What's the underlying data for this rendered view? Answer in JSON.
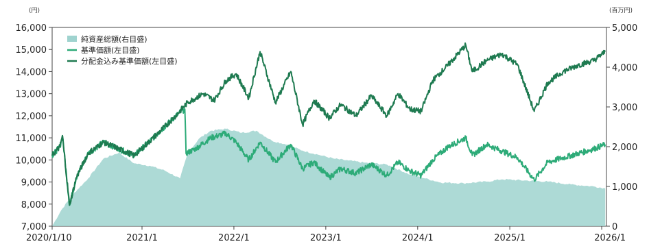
{
  "chart_data": {
    "type": "line",
    "left_axis": {
      "unit": "(円)",
      "range": [
        7000,
        16000
      ],
      "ticks": [
        "7,000",
        "8,000",
        "9,000",
        "10,000",
        "11,000",
        "12,000",
        "13,000",
        "14,000",
        "15,000",
        "16,000"
      ]
    },
    "right_axis": {
      "unit": "(百万円)",
      "range": [
        0,
        5000
      ],
      "ticks": [
        "0",
        "1,000",
        "2,000",
        "3,000",
        "4,000",
        "5,000"
      ]
    },
    "x_axis": {
      "ticks": [
        "2020/1/10",
        "2021/1",
        "2022/1",
        "2023/1",
        "2024/1",
        "2025/1",
        "2026/1"
      ]
    },
    "legend_position": "top-left",
    "series": [
      {
        "name": "純資産総額(右目盛)",
        "kind": "area",
        "axis": "right",
        "color": "#9fd3cf",
        "points": [
          [
            "2020-01-10",
            0
          ],
          [
            "2020-02-15",
            400
          ],
          [
            "2020-04-01",
            800
          ],
          [
            "2020-06-01",
            1200
          ],
          [
            "2020-08-01",
            1700
          ],
          [
            "2020-10-01",
            1850
          ],
          [
            "2020-12-01",
            1580
          ],
          [
            "2021-02-01",
            1520
          ],
          [
            "2021-04-01",
            1400
          ],
          [
            "2021-06-01",
            1200
          ],
          [
            "2021-07-01",
            1820
          ],
          [
            "2021-08-15",
            2200
          ],
          [
            "2021-10-01",
            2400
          ],
          [
            "2021-12-01",
            2450
          ],
          [
            "2022-02-01",
            2350
          ],
          [
            "2022-04-01",
            2400
          ],
          [
            "2022-06-01",
            2150
          ],
          [
            "2022-08-01",
            2050
          ],
          [
            "2022-10-01",
            1900
          ],
          [
            "2022-12-01",
            1800
          ],
          [
            "2023-02-01",
            1700
          ],
          [
            "2023-04-01",
            1650
          ],
          [
            "2023-06-01",
            1600
          ],
          [
            "2023-09-01",
            1550
          ],
          [
            "2023-12-01",
            1300
          ],
          [
            "2024-02-01",
            1200
          ],
          [
            "2024-04-01",
            1100
          ],
          [
            "2024-07-01",
            1080
          ],
          [
            "2024-10-01",
            1120
          ],
          [
            "2024-12-01",
            1180
          ],
          [
            "2025-03-01",
            1150
          ],
          [
            "2025-06-01",
            1120
          ],
          [
            "2025-09-01",
            1050
          ],
          [
            "2025-12-01",
            1000
          ],
          [
            "2026-01-15",
            950
          ]
        ]
      },
      {
        "name": "基準価額(左目盛)",
        "kind": "line",
        "axis": "left",
        "color": "#2dab78",
        "points": [
          [
            "2020-01-10",
            10200
          ],
          [
            "2020-02-10",
            10600
          ],
          [
            "2020-02-20",
            11100
          ],
          [
            "2020-03-19",
            7950
          ],
          [
            "2020-04-15",
            9200
          ],
          [
            "2020-06-01",
            10300
          ],
          [
            "2020-08-01",
            10800
          ],
          [
            "2020-10-01",
            10500
          ],
          [
            "2020-12-01",
            10200
          ],
          [
            "2021-02-15",
            11000
          ],
          [
            "2021-04-01",
            11500
          ],
          [
            "2021-05-15",
            12000
          ],
          [
            "2021-06-20",
            12300
          ],
          [
            "2021-06-25",
            10300
          ],
          [
            "2021-08-01",
            10500
          ],
          [
            "2021-10-01",
            11000
          ],
          [
            "2021-12-01",
            11200
          ],
          [
            "2022-01-10",
            10800
          ],
          [
            "2022-03-01",
            10000
          ],
          [
            "2022-04-15",
            10800
          ],
          [
            "2022-06-15",
            9900
          ],
          [
            "2022-08-15",
            10700
          ],
          [
            "2022-10-01",
            9600
          ],
          [
            "2022-11-15",
            9900
          ],
          [
            "2023-01-15",
            9200
          ],
          [
            "2023-03-01",
            9600
          ],
          [
            "2023-05-01",
            9400
          ],
          [
            "2023-07-01",
            9800
          ],
          [
            "2023-09-01",
            9300
          ],
          [
            "2023-10-15",
            9900
          ],
          [
            "2023-12-01",
            9500
          ],
          [
            "2024-01-15",
            9300
          ],
          [
            "2024-03-01",
            10000
          ],
          [
            "2024-05-01",
            10600
          ],
          [
            "2024-07-10",
            11000
          ],
          [
            "2024-08-05",
            10200
          ],
          [
            "2024-10-01",
            10700
          ],
          [
            "2024-12-01",
            10400
          ],
          [
            "2025-02-01",
            10100
          ],
          [
            "2025-04-08",
            9100
          ],
          [
            "2025-06-01",
            9900
          ],
          [
            "2025-08-01",
            10100
          ],
          [
            "2025-10-01",
            10300
          ],
          [
            "2025-12-01",
            10500
          ],
          [
            "2026-01-15",
            10700
          ]
        ]
      },
      {
        "name": "分配金込み基準価額(左目盛)",
        "kind": "line",
        "axis": "left",
        "color": "#1e7a50",
        "points": [
          [
            "2020-01-10",
            10200
          ],
          [
            "2020-02-10",
            10600
          ],
          [
            "2020-02-20",
            11100
          ],
          [
            "2020-03-19",
            7950
          ],
          [
            "2020-04-15",
            9200
          ],
          [
            "2020-06-01",
            10300
          ],
          [
            "2020-08-01",
            10800
          ],
          [
            "2020-10-01",
            10500
          ],
          [
            "2020-12-01",
            10200
          ],
          [
            "2021-02-15",
            11000
          ],
          [
            "2021-04-01",
            11500
          ],
          [
            "2021-05-15",
            12000
          ],
          [
            "2021-07-01",
            12600
          ],
          [
            "2021-09-01",
            13000
          ],
          [
            "2021-10-15",
            12700
          ],
          [
            "2021-12-01",
            13600
          ],
          [
            "2022-01-10",
            13900
          ],
          [
            "2022-03-01",
            12800
          ],
          [
            "2022-04-15",
            14900
          ],
          [
            "2022-06-15",
            12600
          ],
          [
            "2022-08-15",
            14000
          ],
          [
            "2022-10-01",
            11600
          ],
          [
            "2022-11-15",
            12700
          ],
          [
            "2023-01-15",
            11900
          ],
          [
            "2023-03-01",
            12500
          ],
          [
            "2023-05-01",
            12000
          ],
          [
            "2023-07-01",
            12900
          ],
          [
            "2023-09-01",
            12000
          ],
          [
            "2023-10-15",
            13000
          ],
          [
            "2023-12-01",
            12300
          ],
          [
            "2024-01-15",
            12200
          ],
          [
            "2024-03-01",
            13600
          ],
          [
            "2024-05-01",
            14300
          ],
          [
            "2024-07-10",
            15200
          ],
          [
            "2024-08-05",
            14000
          ],
          [
            "2024-10-01",
            14500
          ],
          [
            "2024-12-01",
            14800
          ],
          [
            "2025-02-01",
            14300
          ],
          [
            "2025-04-08",
            12200
          ],
          [
            "2025-06-01",
            13500
          ],
          [
            "2025-08-01",
            14000
          ],
          [
            "2025-10-01",
            14300
          ],
          [
            "2025-12-01",
            14500
          ],
          [
            "2026-01-15",
            14900
          ]
        ]
      }
    ]
  }
}
